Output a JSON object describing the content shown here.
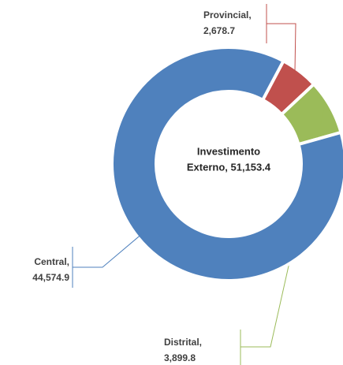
{
  "chart_data": {
    "type": "donut",
    "center_label": [
      "Investimento",
      "Externo, 51,153.4"
    ],
    "categories": [
      "Provincial,",
      "Distrital,",
      "Central,"
    ],
    "values": [
      2678.7,
      3899.8,
      44574.9
    ],
    "value_labels": [
      "2,678.7",
      "3,899.8",
      "44,574.9"
    ],
    "colors": [
      "#c0504d",
      "#9bbb59",
      "#4f81bd"
    ]
  }
}
